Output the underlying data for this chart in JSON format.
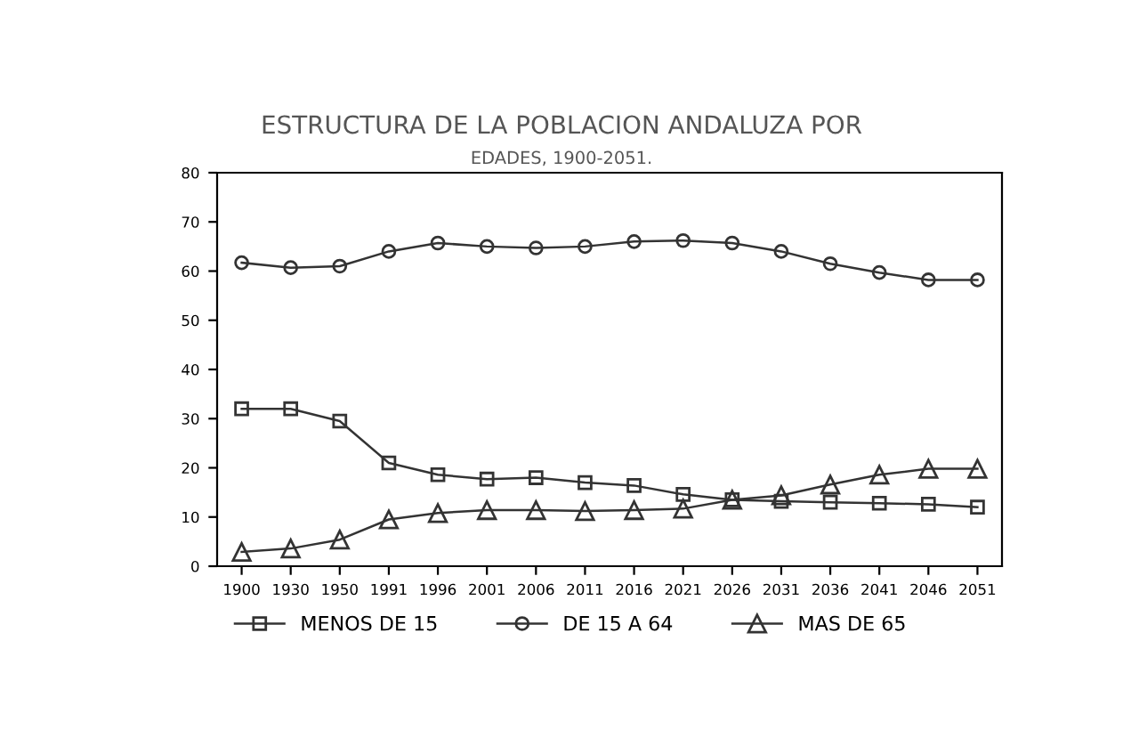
{
  "chart_data": {
    "type": "line",
    "title": "ESTRUCTURA DE LA POBLACION ANDALUZA POR",
    "subtitle": "EDADES, 1900-2051.",
    "categories": [
      "1900",
      "1930",
      "1950",
      "1991",
      "1996",
      "2001",
      "2006",
      "2011",
      "2016",
      "2021",
      "2026",
      "2031",
      "2036",
      "2041",
      "2046",
      "2051"
    ],
    "series": [
      {
        "name": "MENOS DE 15",
        "color": "#333333",
        "marker": "square",
        "values": [
          32,
          32,
          29.5,
          21,
          18.6,
          17.7,
          18,
          17,
          16.4,
          14.6,
          13.5,
          13.2,
          13,
          12.8,
          12.6,
          12
        ]
      },
      {
        "name": "DE 15 A 64",
        "color": "#333333",
        "marker": "circle",
        "values": [
          61.7,
          60.7,
          61,
          64,
          65.7,
          65,
          64.7,
          65,
          66,
          66.2,
          65.7,
          64,
          61.5,
          59.7,
          58.2,
          58.2
        ]
      },
      {
        "name": "MAS DE 65",
        "color": "#333333",
        "marker": "triangle",
        "values": [
          2.9,
          3.6,
          5.4,
          9.5,
          10.8,
          11.4,
          11.4,
          11.2,
          11.4,
          11.7,
          13.5,
          14.4,
          16.6,
          18.6,
          19.8,
          19.8
        ]
      }
    ],
    "ylim": [
      0,
      80
    ],
    "yticks": [
      0,
      10,
      20,
      30,
      40,
      50,
      60,
      70,
      80
    ],
    "grid": false,
    "legend": "bottom",
    "line_style": "solid"
  }
}
